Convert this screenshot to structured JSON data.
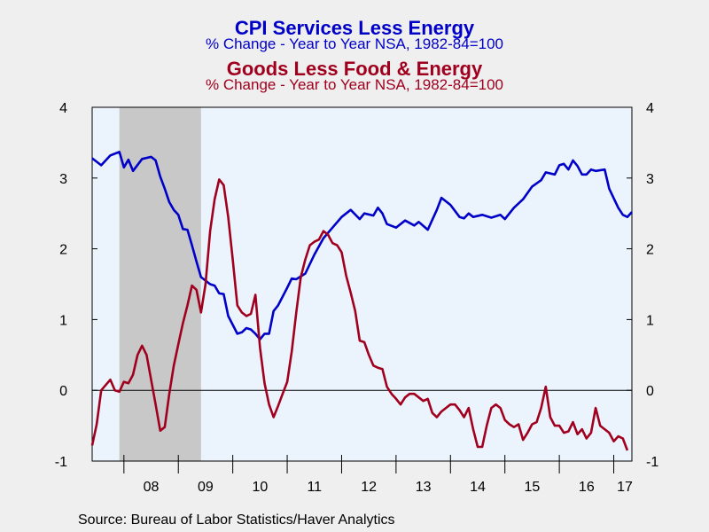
{
  "header": {
    "title1": "CPI Services Less Energy",
    "subtitle1": "% Change - Year to Year     NSA, 1982-84=100",
    "title2": "Goods Less Food & Energy",
    "subtitle2": "% Change - Year to Year     NSA, 1982-84=100"
  },
  "footer": {
    "source": "Source:  Bureau of Labor Statistics/Haver Analytics"
  },
  "colors": {
    "series1": "#0000c8",
    "series2": "#a0001e",
    "recession": "#c8c8c8",
    "plot_bg": "#ebf4fc",
    "page_bg": "#efefef"
  },
  "chart_data": {
    "type": "line",
    "x_axis": {
      "labels": [
        "08",
        "09",
        "10",
        "11",
        "12",
        "13",
        "14",
        "15",
        "16",
        "17"
      ],
      "range": [
        "2007-06",
        "2017-05"
      ]
    },
    "y_axis": {
      "ticks": [
        "4",
        "3",
        "2",
        "1",
        "0",
        "-1"
      ],
      "ylim": [
        -1,
        4
      ]
    },
    "shaded_periods": [
      {
        "start": "2007-12",
        "end": "2009-06",
        "label": ""
      }
    ],
    "reference_line": 0,
    "series": [
      {
        "name": "CPI Services Less Energy",
        "color": "#0000c8",
        "points": [
          [
            "2007-06",
            3.28
          ],
          [
            "2007-08",
            3.18
          ],
          [
            "2007-10",
            3.32
          ],
          [
            "2007-12",
            3.37
          ],
          [
            "2008-01",
            3.15
          ],
          [
            "2008-02",
            3.26
          ],
          [
            "2008-03",
            3.1
          ],
          [
            "2008-05",
            3.27
          ],
          [
            "2008-07",
            3.3
          ],
          [
            "2008-08",
            3.25
          ],
          [
            "2008-09",
            3.02
          ],
          [
            "2008-10",
            2.85
          ],
          [
            "2008-11",
            2.66
          ],
          [
            "2008-12",
            2.55
          ],
          [
            "2009-01",
            2.48
          ],
          [
            "2009-02",
            2.28
          ],
          [
            "2009-03",
            2.27
          ],
          [
            "2009-04",
            2.05
          ],
          [
            "2009-05",
            1.82
          ],
          [
            "2009-06",
            1.6
          ],
          [
            "2009-08",
            1.5
          ],
          [
            "2009-09",
            1.48
          ],
          [
            "2009-10",
            1.37
          ],
          [
            "2009-11",
            1.36
          ],
          [
            "2009-12",
            1.05
          ],
          [
            "2010-02",
            0.8
          ],
          [
            "2010-03",
            0.82
          ],
          [
            "2010-04",
            0.88
          ],
          [
            "2010-05",
            0.86
          ],
          [
            "2010-06",
            0.8
          ],
          [
            "2010-07",
            0.72
          ],
          [
            "2010-08",
            0.8
          ],
          [
            "2010-09",
            0.8
          ],
          [
            "2010-10",
            1.12
          ],
          [
            "2010-11",
            1.2
          ],
          [
            "2011-01",
            1.45
          ],
          [
            "2011-02",
            1.58
          ],
          [
            "2011-03",
            1.57
          ],
          [
            "2011-05",
            1.65
          ],
          [
            "2011-07",
            1.92
          ],
          [
            "2011-09",
            2.15
          ],
          [
            "2011-11",
            2.3
          ],
          [
            "2012-01",
            2.45
          ],
          [
            "2012-03",
            2.55
          ],
          [
            "2012-05",
            2.42
          ],
          [
            "2012-06",
            2.5
          ],
          [
            "2012-08",
            2.47
          ],
          [
            "2012-09",
            2.58
          ],
          [
            "2012-10",
            2.5
          ],
          [
            "2012-11",
            2.35
          ],
          [
            "2013-01",
            2.3
          ],
          [
            "2013-03",
            2.4
          ],
          [
            "2013-05",
            2.33
          ],
          [
            "2013-06",
            2.38
          ],
          [
            "2013-08",
            2.27
          ],
          [
            "2013-10",
            2.55
          ],
          [
            "2013-11",
            2.72
          ],
          [
            "2014-01",
            2.62
          ],
          [
            "2014-03",
            2.45
          ],
          [
            "2014-04",
            2.43
          ],
          [
            "2014-05",
            2.5
          ],
          [
            "2014-06",
            2.45
          ],
          [
            "2014-08",
            2.48
          ],
          [
            "2014-10",
            2.44
          ],
          [
            "2014-12",
            2.48
          ],
          [
            "2015-01",
            2.42
          ],
          [
            "2015-03",
            2.58
          ],
          [
            "2015-05",
            2.7
          ],
          [
            "2015-07",
            2.88
          ],
          [
            "2015-09",
            2.97
          ],
          [
            "2015-10",
            3.08
          ],
          [
            "2015-12",
            3.05
          ],
          [
            "2016-01",
            3.18
          ],
          [
            "2016-02",
            3.2
          ],
          [
            "2016-03",
            3.12
          ],
          [
            "2016-04",
            3.25
          ],
          [
            "2016-05",
            3.17
          ],
          [
            "2016-06",
            3.05
          ],
          [
            "2016-07",
            3.05
          ],
          [
            "2016-08",
            3.12
          ],
          [
            "2016-09",
            3.1
          ],
          [
            "2016-11",
            3.12
          ],
          [
            "2016-12",
            2.85
          ],
          [
            "2017-02",
            2.58
          ],
          [
            "2017-03",
            2.48
          ],
          [
            "2017-04",
            2.45
          ],
          [
            "2017-05",
            2.52
          ]
        ]
      },
      {
        "name": "Goods Less Food & Energy",
        "color": "#a0001e",
        "points": [
          [
            "2007-06",
            -0.78
          ],
          [
            "2007-07",
            -0.48
          ],
          [
            "2007-08",
            0.0
          ],
          [
            "2007-10",
            0.15
          ],
          [
            "2007-11",
            0.0
          ],
          [
            "2007-12",
            -0.02
          ],
          [
            "2008-01",
            0.12
          ],
          [
            "2008-02",
            0.1
          ],
          [
            "2008-03",
            0.22
          ],
          [
            "2008-04",
            0.5
          ],
          [
            "2008-05",
            0.63
          ],
          [
            "2008-06",
            0.5
          ],
          [
            "2008-07",
            0.15
          ],
          [
            "2008-08",
            -0.2
          ],
          [
            "2008-09",
            -0.57
          ],
          [
            "2008-10",
            -0.52
          ],
          [
            "2008-11",
            -0.05
          ],
          [
            "2008-12",
            0.35
          ],
          [
            "2009-01",
            0.65
          ],
          [
            "2009-02",
            0.95
          ],
          [
            "2009-03",
            1.2
          ],
          [
            "2009-04",
            1.48
          ],
          [
            "2009-05",
            1.42
          ],
          [
            "2009-06",
            1.1
          ],
          [
            "2009-07",
            1.5
          ],
          [
            "2009-08",
            2.25
          ],
          [
            "2009-09",
            2.7
          ],
          [
            "2009-10",
            2.98
          ],
          [
            "2009-11",
            2.9
          ],
          [
            "2009-12",
            2.45
          ],
          [
            "2010-01",
            1.85
          ],
          [
            "2010-02",
            1.2
          ],
          [
            "2010-03",
            1.1
          ],
          [
            "2010-04",
            1.05
          ],
          [
            "2010-05",
            1.08
          ],
          [
            "2010-06",
            1.35
          ],
          [
            "2010-07",
            0.6
          ],
          [
            "2010-08",
            0.1
          ],
          [
            "2010-09",
            -0.2
          ],
          [
            "2010-10",
            -0.38
          ],
          [
            "2010-11",
            -0.22
          ],
          [
            "2010-12",
            -0.05
          ],
          [
            "2011-01",
            0.12
          ],
          [
            "2011-02",
            0.55
          ],
          [
            "2011-03",
            1.1
          ],
          [
            "2011-04",
            1.6
          ],
          [
            "2011-05",
            1.85
          ],
          [
            "2011-06",
            2.05
          ],
          [
            "2011-07",
            2.1
          ],
          [
            "2011-08",
            2.13
          ],
          [
            "2011-09",
            2.25
          ],
          [
            "2011-10",
            2.2
          ],
          [
            "2011-11",
            2.08
          ],
          [
            "2011-12",
            2.05
          ],
          [
            "2012-01",
            1.95
          ],
          [
            "2012-02",
            1.62
          ],
          [
            "2012-03",
            1.38
          ],
          [
            "2012-04",
            1.12
          ],
          [
            "2012-05",
            0.7
          ],
          [
            "2012-06",
            0.68
          ],
          [
            "2012-07",
            0.5
          ],
          [
            "2012-08",
            0.35
          ],
          [
            "2012-09",
            0.32
          ],
          [
            "2012-10",
            0.3
          ],
          [
            "2012-11",
            0.05
          ],
          [
            "2012-12",
            -0.05
          ],
          [
            "2013-01",
            -0.12
          ],
          [
            "2013-02",
            -0.2
          ],
          [
            "2013-03",
            -0.1
          ],
          [
            "2013-04",
            -0.05
          ],
          [
            "2013-05",
            -0.05
          ],
          [
            "2013-06",
            -0.1
          ],
          [
            "2013-07",
            -0.15
          ],
          [
            "2013-08",
            -0.12
          ],
          [
            "2013-09",
            -0.32
          ],
          [
            "2013-10",
            -0.38
          ],
          [
            "2013-11",
            -0.3
          ],
          [
            "2013-12",
            -0.25
          ],
          [
            "2014-01",
            -0.2
          ],
          [
            "2014-02",
            -0.2
          ],
          [
            "2014-03",
            -0.28
          ],
          [
            "2014-04",
            -0.38
          ],
          [
            "2014-05",
            -0.25
          ],
          [
            "2014-06",
            -0.55
          ],
          [
            "2014-07",
            -0.8
          ],
          [
            "2014-08",
            -0.8
          ],
          [
            "2014-09",
            -0.5
          ],
          [
            "2014-10",
            -0.25
          ],
          [
            "2014-11",
            -0.2
          ],
          [
            "2014-12",
            -0.25
          ],
          [
            "2015-01",
            -0.42
          ],
          [
            "2015-02",
            -0.48
          ],
          [
            "2015-03",
            -0.52
          ],
          [
            "2015-04",
            -0.48
          ],
          [
            "2015-05",
            -0.7
          ],
          [
            "2015-06",
            -0.6
          ],
          [
            "2015-07",
            -0.48
          ],
          [
            "2015-08",
            -0.45
          ],
          [
            "2015-09",
            -0.25
          ],
          [
            "2015-10",
            0.05
          ],
          [
            "2015-11",
            -0.38
          ],
          [
            "2015-12",
            -0.5
          ],
          [
            "2016-01",
            -0.5
          ],
          [
            "2016-02",
            -0.6
          ],
          [
            "2016-03",
            -0.58
          ],
          [
            "2016-04",
            -0.45
          ],
          [
            "2016-05",
            -0.62
          ],
          [
            "2016-06",
            -0.55
          ],
          [
            "2016-07",
            -0.68
          ],
          [
            "2016-08",
            -0.6
          ],
          [
            "2016-09",
            -0.25
          ],
          [
            "2016-10",
            -0.5
          ],
          [
            "2016-11",
            -0.55
          ],
          [
            "2016-12",
            -0.6
          ],
          [
            "2017-01",
            -0.72
          ],
          [
            "2017-02",
            -0.65
          ],
          [
            "2017-03",
            -0.68
          ],
          [
            "2017-04",
            -0.85
          ]
        ]
      }
    ]
  }
}
